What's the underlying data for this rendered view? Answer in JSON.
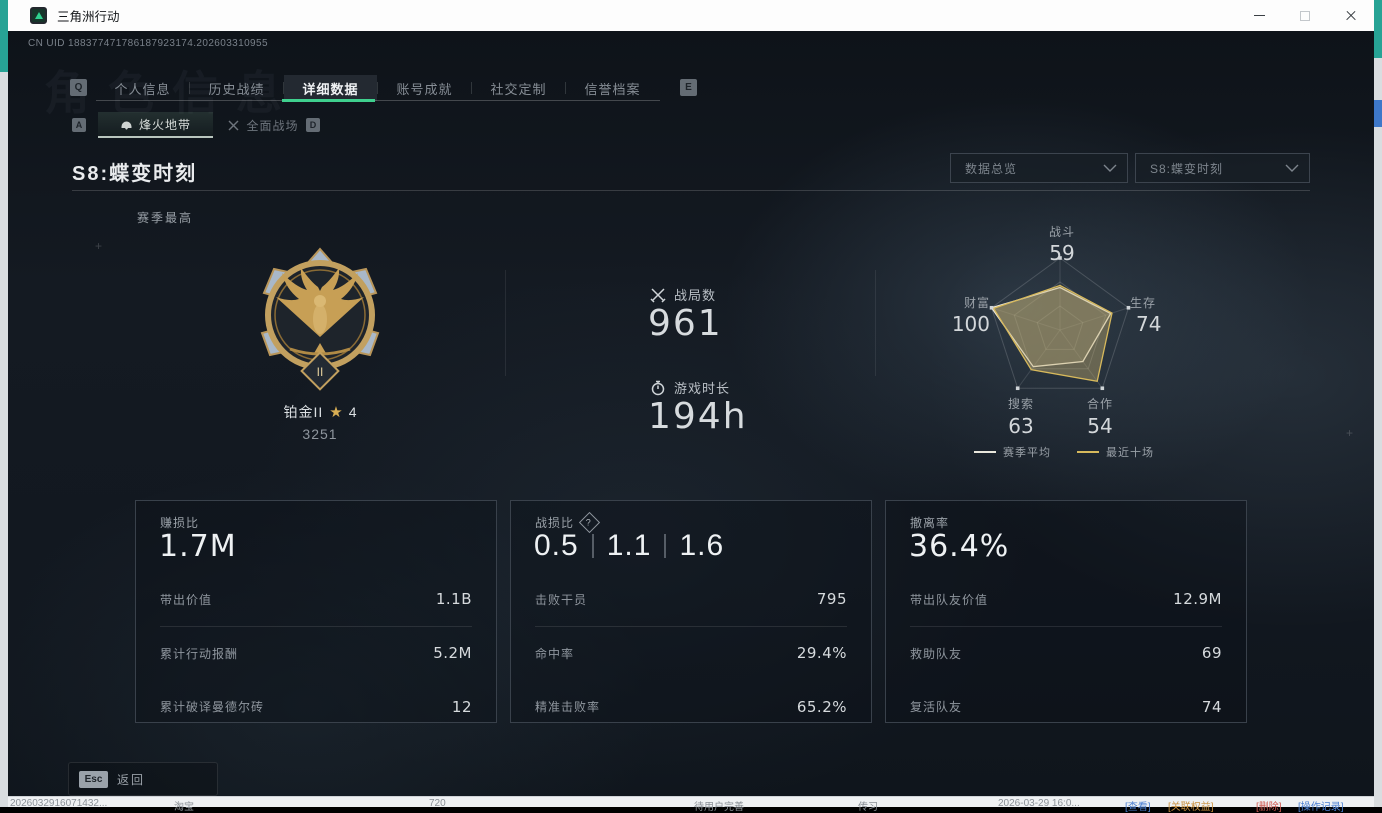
{
  "window": {
    "title": "三角洲行动",
    "controls": {
      "minimize": "minimize",
      "maximize": "maximize",
      "close": "close"
    }
  },
  "header": {
    "uid": "CN UID 188377471786187923174.202603310955",
    "watermark": "角色信息"
  },
  "tabs": {
    "prev_key": "Q",
    "next_key": "E",
    "items": [
      {
        "label": "个人信息",
        "active": false
      },
      {
        "label": "历史战绩",
        "active": false
      },
      {
        "label": "详细数据",
        "active": true
      },
      {
        "label": "账号成就",
        "active": false
      },
      {
        "label": "社交定制",
        "active": false
      },
      {
        "label": "信誉档案",
        "active": false
      }
    ]
  },
  "subtabs": {
    "prev_key": "A",
    "next_key": "D",
    "items": [
      {
        "label": "烽火地带",
        "active": true
      },
      {
        "label": "全面战场",
        "active": false
      }
    ]
  },
  "page": {
    "title": "S8:蝶变时刻",
    "season_best_label": "赛季最高"
  },
  "filters": {
    "scope": "数据总览",
    "season": "S8:蝶变时刻"
  },
  "rank": {
    "name": "铂金II",
    "stars": "4",
    "score": "3251",
    "tier_numeral": "II"
  },
  "summary": [
    {
      "icon": "crossed-swords",
      "label": "战局数",
      "value": "961"
    },
    {
      "icon": "stopwatch",
      "label": "游戏时长",
      "value": "194h"
    }
  ],
  "chart_data": {
    "type": "radar",
    "categories": [
      "战斗",
      "生存",
      "合作",
      "搜索",
      "财富"
    ],
    "axes": [
      {
        "label": "战斗",
        "value": "59"
      },
      {
        "label": "生存",
        "value": "74"
      },
      {
        "label": "合作",
        "value": "54"
      },
      {
        "label": "搜索",
        "value": "63"
      },
      {
        "label": "财富",
        "value": "100"
      }
    ],
    "max": 100,
    "grid_levels": 3,
    "legend_position": "bottom",
    "series": [
      {
        "name": "赛季平均",
        "color": "#e9e7dc",
        "values": [
          59,
          74,
          54,
          63,
          100
        ]
      },
      {
        "name": "最近十场",
        "color": "#d7b95c",
        "values": [
          62,
          76,
          88,
          68,
          97
        ]
      }
    ]
  },
  "cards": [
    {
      "title": "赚损比",
      "value": "1.7M",
      "rows": [
        {
          "label": "带出价值",
          "value": "1.1B"
        },
        {
          "label": "累计行动报酬",
          "value": "5.2M"
        },
        {
          "label": "累计破译曼德尔砖",
          "value": "12"
        }
      ]
    },
    {
      "title": "战损比",
      "help": "?",
      "values": [
        "0.5",
        "1.1",
        "1.6"
      ],
      "rows": [
        {
          "label": "击败干员",
          "value": "795"
        },
        {
          "label": "命中率",
          "value": "29.4%"
        },
        {
          "label": "精准击败率",
          "value": "65.2%"
        }
      ]
    },
    {
      "title": "撤离率",
      "value": "36.4%",
      "rows": [
        {
          "label": "带出队友价值",
          "value": "12.9M"
        },
        {
          "label": "救助队友",
          "value": "69"
        },
        {
          "label": "复活队友",
          "value": "74"
        }
      ]
    }
  ],
  "footer": {
    "esc_key": "Esc",
    "back_label": "返回"
  },
  "background_row": {
    "cells": [
      "2026032916071432...",
      "淘宝",
      "720",
      "待用户完善",
      "传习",
      "2026-03-29 16:0..."
    ],
    "links": [
      {
        "label": "[查看]",
        "color": "#4a7fd1"
      },
      {
        "label": "[关联权益]",
        "color": "#c98f3d"
      },
      {
        "label": "[删除]",
        "color": "#cf5a52"
      },
      {
        "label": "[操作记录]",
        "color": "#4a7fd1"
      }
    ]
  },
  "colors": {
    "accent_green": "#3fd08e",
    "gold": "#d2a74f",
    "radar_yellow": "#d7b95c",
    "radar_white": "#e9e7dc"
  }
}
